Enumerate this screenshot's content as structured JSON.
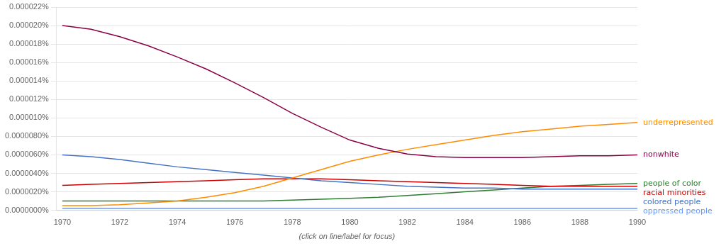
{
  "chart_data": {
    "type": "line",
    "xlabel": "(click on line/label for focus)",
    "x": [
      1970,
      1971,
      1972,
      1973,
      1974,
      1975,
      1976,
      1977,
      1978,
      1979,
      1980,
      1981,
      1982,
      1983,
      1984,
      1985,
      1986,
      1987,
      1988,
      1989,
      1990
    ],
    "xlim": [
      1969.8,
      1990.0
    ],
    "xticks": [
      1970,
      1972,
      1974,
      1976,
      1978,
      1980,
      1982,
      1984,
      1986,
      1988,
      1990
    ],
    "ylim": [
      0.0,
      2.2e-07
    ],
    "yticks": [
      {
        "value": 0.0,
        "label": "0.0000000%"
      },
      {
        "value": 2e-08,
        "label": "0.0000020%"
      },
      {
        "value": 4e-08,
        "label": "0.0000040%"
      },
      {
        "value": 6e-08,
        "label": "0.0000060%"
      },
      {
        "value": 8e-08,
        "label": "0.0000080%"
      },
      {
        "value": 1e-07,
        "label": "0.000010%"
      },
      {
        "value": 1.2e-07,
        "label": "0.000012%"
      },
      {
        "value": 1.4e-07,
        "label": "0.000014%"
      },
      {
        "value": 1.6e-07,
        "label": "0.000016%"
      },
      {
        "value": 1.8e-07,
        "label": "0.000018%"
      },
      {
        "value": 2e-07,
        "label": "0.000020%"
      },
      {
        "value": 2.2e-07,
        "label": "0.000022%"
      }
    ],
    "grid": "y",
    "series": [
      {
        "name": "nonwhite",
        "color": "#8B0045",
        "values": [
          2e-07,
          1.96e-07,
          1.88e-07,
          1.78e-07,
          1.66e-07,
          1.53e-07,
          1.38e-07,
          1.22e-07,
          1.05e-07,
          9e-08,
          7.6e-08,
          6.7e-08,
          6.1e-08,
          5.8e-08,
          5.7e-08,
          5.7e-08,
          5.7e-08,
          5.8e-08,
          5.9e-08,
          5.9e-08,
          6e-08
        ]
      },
      {
        "name": "underrepresented",
        "color": "#FF8C00",
        "values": [
          5e-09,
          5e-09,
          6e-09,
          8e-09,
          1e-08,
          1.4e-08,
          1.9e-08,
          2.6e-08,
          3.5e-08,
          4.4e-08,
          5.3e-08,
          6e-08,
          6.6e-08,
          7.1e-08,
          7.6e-08,
          8.1e-08,
          8.5e-08,
          8.8e-08,
          9.1e-08,
          9.3e-08,
          9.5e-08
        ]
      },
      {
        "name": "colored people",
        "color": "#4472C4",
        "values": [
          6e-08,
          5.8e-08,
          5.5e-08,
          5.1e-08,
          4.7e-08,
          4.4e-08,
          4.1e-08,
          3.8e-08,
          3.5e-08,
          3.2e-08,
          3e-08,
          2.8e-08,
          2.6e-08,
          2.5e-08,
          2.4e-08,
          2.4e-08,
          2.3e-08,
          2.3e-08,
          2.3e-08,
          2.3e-08,
          2.3e-08
        ]
      },
      {
        "name": "racial minorities",
        "color": "#CC0000",
        "values": [
          2.7e-08,
          2.8e-08,
          2.9e-08,
          3e-08,
          3.1e-08,
          3.2e-08,
          3.3e-08,
          3.4e-08,
          3.4e-08,
          3.4e-08,
          3.3e-08,
          3.2e-08,
          3.1e-08,
          3e-08,
          2.9e-08,
          2.8e-08,
          2.7e-08,
          2.6e-08,
          2.6e-08,
          2.6e-08,
          2.6e-08
        ]
      },
      {
        "name": "people of color",
        "color": "#2E7D32",
        "values": [
          1e-08,
          1e-08,
          1e-08,
          1e-08,
          1e-08,
          1e-08,
          1e-08,
          1e-08,
          1.1e-08,
          1.2e-08,
          1.3e-08,
          1.4e-08,
          1.6e-08,
          1.8e-08,
          2e-08,
          2.2e-08,
          2.4e-08,
          2.6e-08,
          2.7e-08,
          2.8e-08,
          2.9e-08
        ]
      },
      {
        "name": "oppressed people",
        "color": "#6699FF",
        "values": [
          2e-09,
          2e-09,
          2e-09,
          2e-09,
          2e-09,
          2e-09,
          2e-09,
          2e-09,
          2e-09,
          2e-09,
          2e-09,
          2e-09,
          2e-09,
          2e-09,
          2e-09,
          2e-09,
          2e-09,
          2e-09,
          2e-09,
          2e-09,
          2e-09
        ]
      }
    ]
  }
}
